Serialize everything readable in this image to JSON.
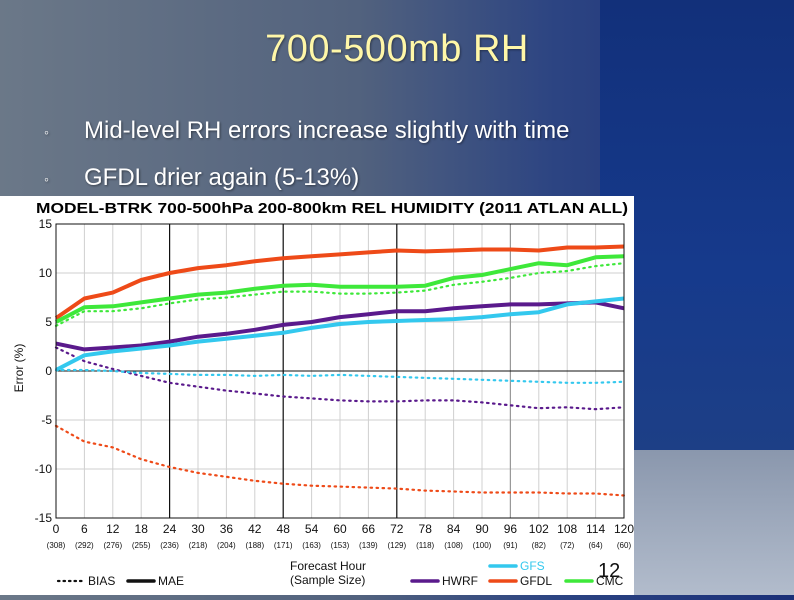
{
  "slide": {
    "title": "700-500mb RH",
    "bullets": [
      "Mid-level RH errors increase slightly with time",
      "GFDL drier again (5-13%)"
    ],
    "bullet_glyph": "◦",
    "page_number": "12"
  },
  "colors": {
    "hwrf": "#5a1a8c",
    "gfdl": "#ee4a18",
    "gfs": "#33c8ee",
    "cmc": "#3ee83a",
    "title_text": "#fff7a8"
  },
  "chart_data": {
    "type": "line",
    "title": "MODEL-BTRK 700-500hPa 200-800km REL HUMIDITY (2011 ATLAN ALL)",
    "xlabel": "Forecast Hour",
    "xlabel2": "(Sample Size)",
    "ylabel": "Error (%)",
    "ylim": [
      -15,
      15
    ],
    "yticks": [
      15,
      10,
      5,
      0,
      -5,
      -10,
      -15
    ],
    "x": [
      0,
      6,
      12,
      18,
      24,
      30,
      36,
      42,
      48,
      54,
      60,
      66,
      72,
      78,
      84,
      90,
      96,
      102,
      108,
      114,
      120
    ],
    "sample_sizes": [
      "(308)",
      "(292)",
      "(276)",
      "(255)",
      "(236)",
      "(218)",
      "(204)",
      "(188)",
      "(171)",
      "(163)",
      "(153)",
      "(139)",
      "(129)",
      "(118)",
      "(108)",
      "(100)",
      "(91)",
      "(82)",
      "(72)",
      "(64)",
      "(60)"
    ],
    "vertical_lines": [
      24,
      48,
      72,
      96
    ],
    "legend": [
      {
        "label": "BIAS",
        "style": "dotted"
      },
      {
        "label": "MAE",
        "style": "solid"
      },
      {
        "label": "GFS",
        "color_key": "gfs"
      },
      {
        "label": "HWRF",
        "color_key": "hwrf"
      },
      {
        "label": "GFDL",
        "color_key": "gfdl"
      },
      {
        "label": "CMC",
        "color_key": "cmc"
      }
    ],
    "series": [
      {
        "name": "GFDL",
        "stat": "MAE",
        "color_key": "gfdl",
        "values": [
          5.4,
          7.4,
          8.0,
          9.3,
          10.0,
          10.5,
          10.8,
          11.2,
          11.5,
          11.7,
          11.9,
          12.1,
          12.3,
          12.2,
          12.3,
          12.4,
          12.4,
          12.3,
          12.6,
          12.6,
          12.7
        ]
      },
      {
        "name": "CMC",
        "stat": "MAE",
        "color_key": "cmc",
        "values": [
          5.0,
          6.5,
          6.6,
          7.0,
          7.4,
          7.8,
          8.0,
          8.4,
          8.7,
          8.8,
          8.6,
          8.6,
          8.6,
          8.7,
          9.5,
          9.8,
          10.4,
          11.0,
          10.8,
          11.6,
          11.7
        ]
      },
      {
        "name": "CMC",
        "stat": "BIAS",
        "color_key": "cmc",
        "values": [
          4.6,
          6.1,
          6.1,
          6.4,
          6.9,
          7.3,
          7.5,
          7.8,
          8.1,
          8.1,
          7.9,
          7.9,
          8.0,
          8.2,
          8.8,
          9.1,
          9.5,
          10.0,
          10.2,
          10.7,
          11.0
        ]
      },
      {
        "name": "HWRF",
        "stat": "MAE",
        "color_key": "hwrf",
        "values": [
          2.8,
          2.2,
          2.4,
          2.6,
          3.0,
          3.5,
          3.8,
          4.2,
          4.7,
          5.0,
          5.5,
          5.8,
          6.1,
          6.1,
          6.4,
          6.6,
          6.8,
          6.8,
          6.9,
          7.0,
          6.4
        ]
      },
      {
        "name": "HWRF",
        "stat": "BIAS",
        "color_key": "hwrf",
        "values": [
          2.4,
          1.0,
          0.2,
          -0.5,
          -1.2,
          -1.6,
          -2.0,
          -2.3,
          -2.6,
          -2.8,
          -3.0,
          -3.1,
          -3.1,
          -3.0,
          -3.0,
          -3.2,
          -3.5,
          -3.8,
          -3.7,
          -3.9,
          -3.7
        ]
      },
      {
        "name": "GFS",
        "stat": "MAE",
        "color_key": "gfs",
        "values": [
          0.1,
          1.6,
          2.0,
          2.3,
          2.6,
          3.0,
          3.3,
          3.6,
          3.9,
          4.4,
          4.8,
          5.0,
          5.1,
          5.2,
          5.3,
          5.5,
          5.8,
          6.0,
          6.8,
          7.1,
          7.4
        ]
      },
      {
        "name": "GFS",
        "stat": "BIAS",
        "color_key": "gfs",
        "values": [
          0.1,
          0.1,
          0.0,
          -0.2,
          -0.3,
          -0.4,
          -0.4,
          -0.5,
          -0.4,
          -0.5,
          -0.4,
          -0.5,
          -0.6,
          -0.7,
          -0.8,
          -0.9,
          -1.0,
          -1.1,
          -1.2,
          -1.2,
          -1.1
        ]
      },
      {
        "name": "GFDL",
        "stat": "BIAS",
        "color_key": "gfdl",
        "values": [
          -5.6,
          -7.2,
          -7.8,
          -9.0,
          -9.8,
          -10.4,
          -10.8,
          -11.2,
          -11.5,
          -11.7,
          -11.8,
          -11.9,
          -12.0,
          -12.2,
          -12.3,
          -12.4,
          -12.4,
          -12.4,
          -12.5,
          -12.5,
          -12.7
        ]
      }
    ]
  }
}
